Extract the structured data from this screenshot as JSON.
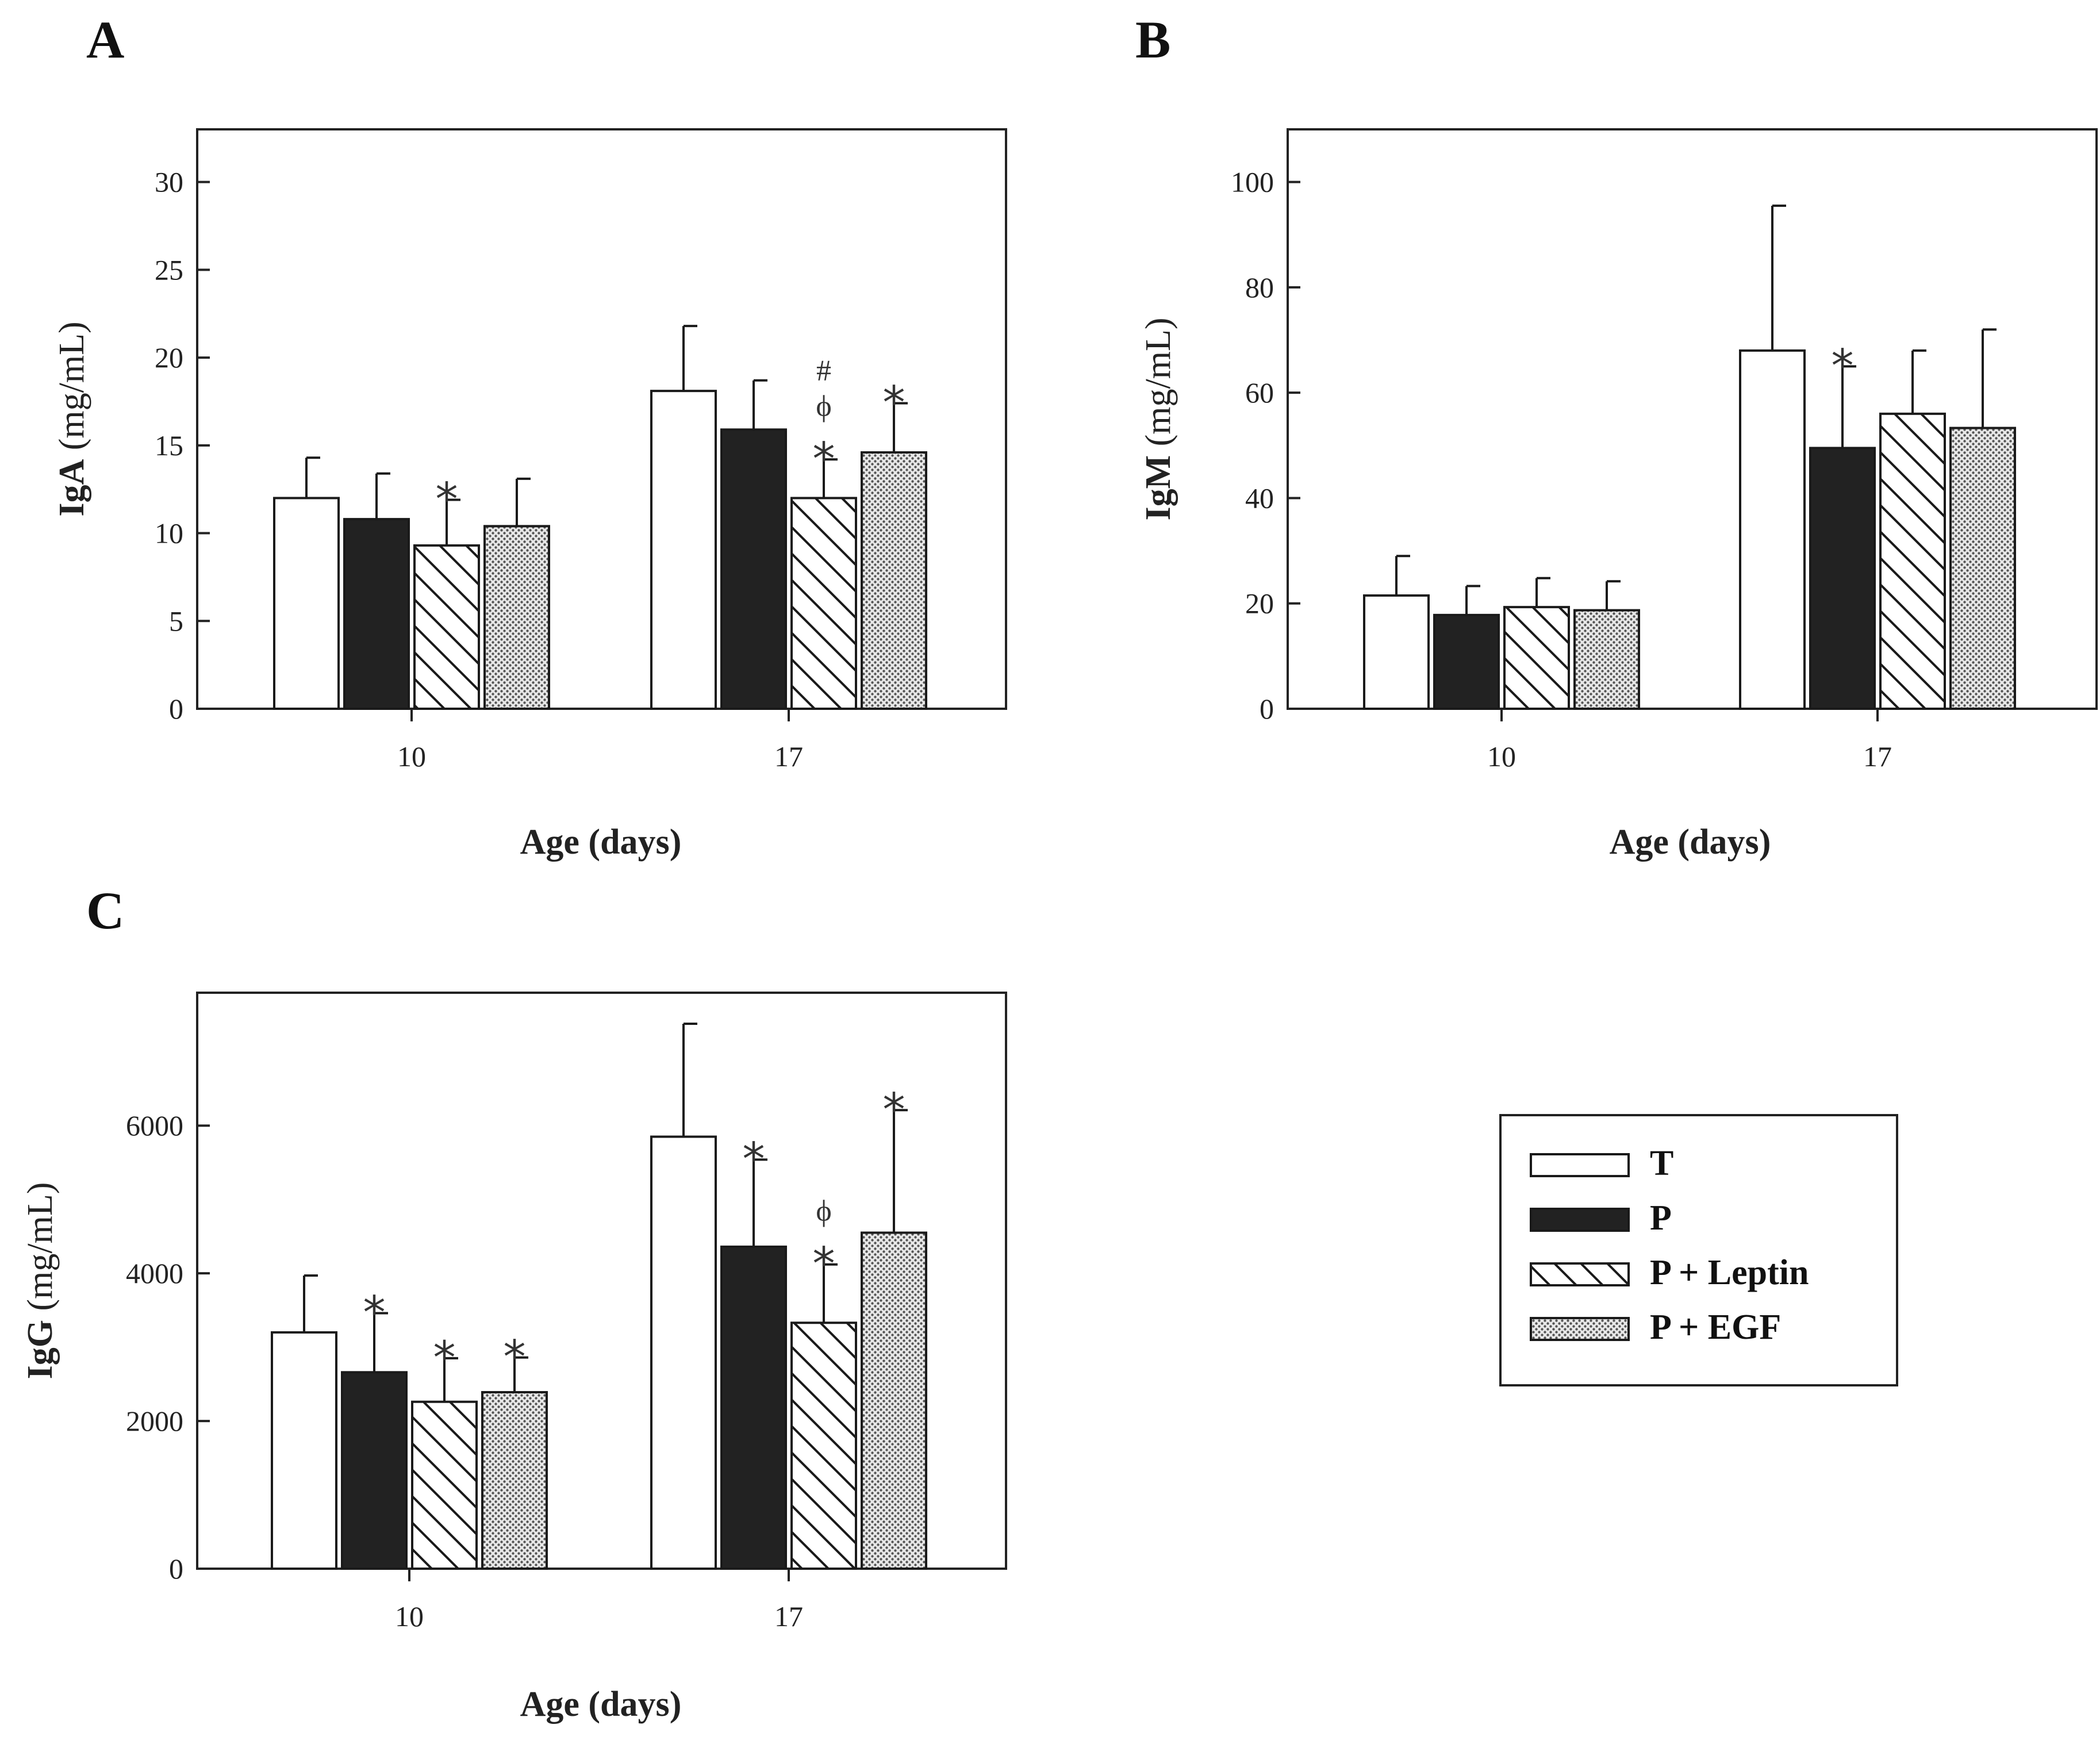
{
  "legend": {
    "entries": [
      {
        "name": "T",
        "fill": "white"
      },
      {
        "name": "P",
        "fill": "black"
      },
      {
        "name": "P + Leptin",
        "fill": "hatch"
      },
      {
        "name": "P + EGF",
        "fill": "dots"
      }
    ]
  },
  "chart_data": [
    {
      "panel": "A",
      "type": "bar",
      "title": "",
      "xlabel": "Age (days)",
      "ylabel_bold": "IgA",
      "ylabel_unit": " (mg/mL)",
      "categories": [
        "10",
        "17"
      ],
      "ylim": [
        0,
        33
      ],
      "yticks": [
        0,
        5,
        10,
        15,
        20,
        25,
        30
      ],
      "series": [
        {
          "name": "T",
          "values": [
            12.0,
            18.1
          ],
          "errors": [
            2.3,
            3.7
          ]
        },
        {
          "name": "P",
          "values": [
            10.8,
            15.9
          ],
          "errors": [
            2.6,
            2.8
          ]
        },
        {
          "name": "P + Leptin",
          "values": [
            9.3,
            12.0
          ],
          "errors": [
            2.6,
            2.2
          ]
        },
        {
          "name": "P + EGF",
          "values": [
            10.4,
            14.6
          ],
          "errors": [
            2.7,
            2.8
          ]
        }
      ],
      "annotations": [
        {
          "category": "10",
          "series": "P + Leptin",
          "marks": [
            "*"
          ]
        },
        {
          "category": "17",
          "series": "P + Leptin",
          "marks": [
            "*",
            "ϕ",
            "#"
          ]
        },
        {
          "category": "17",
          "series": "P + EGF",
          "marks": [
            "*"
          ]
        }
      ]
    },
    {
      "panel": "B",
      "type": "bar",
      "title": "",
      "xlabel": "Age (days)",
      "ylabel_bold": "IgM",
      "ylabel_unit": " (mg/mL)",
      "categories": [
        "10",
        "17"
      ],
      "ylim": [
        0,
        110
      ],
      "yticks": [
        0,
        20,
        40,
        60,
        80,
        100
      ],
      "series": [
        {
          "name": "T",
          "values": [
            21.5,
            68.0
          ],
          "errors": [
            7.5,
            27.5
          ]
        },
        {
          "name": "P",
          "values": [
            17.8,
            49.5
          ],
          "errors": [
            5.5,
            15.5
          ]
        },
        {
          "name": "P + Leptin",
          "values": [
            19.3,
            56.0
          ],
          "errors": [
            5.5,
            12.0
          ]
        },
        {
          "name": "P + EGF",
          "values": [
            18.7,
            53.3
          ],
          "errors": [
            5.5,
            18.7
          ]
        }
      ],
      "annotations": [
        {
          "category": "17",
          "series": "P",
          "marks": [
            "*"
          ]
        }
      ]
    },
    {
      "panel": "C",
      "type": "bar",
      "title": "",
      "xlabel": "Age (days)",
      "ylabel_bold": "IgG",
      "ylabel_unit": " (mg/mL)",
      "categories": [
        "10",
        "17"
      ],
      "ylim": [
        0,
        7800
      ],
      "yticks": [
        0,
        2000,
        4000,
        6000
      ],
      "series": [
        {
          "name": "T",
          "values": [
            3200,
            5850
          ],
          "errors": [
            770,
            1530
          ]
        },
        {
          "name": "P",
          "values": [
            2660,
            4360
          ],
          "errors": [
            800,
            1180
          ]
        },
        {
          "name": "P + Leptin",
          "values": [
            2260,
            3330
          ],
          "errors": [
            590,
            790
          ]
        },
        {
          "name": "P + EGF",
          "values": [
            2390,
            4550
          ],
          "errors": [
            470,
            1660
          ]
        }
      ],
      "annotations": [
        {
          "category": "10",
          "series": "P",
          "marks": [
            "*"
          ]
        },
        {
          "category": "10",
          "series": "P + Leptin",
          "marks": [
            "*"
          ]
        },
        {
          "category": "10",
          "series": "P + EGF",
          "marks": [
            "*"
          ]
        },
        {
          "category": "17",
          "series": "P",
          "marks": [
            "*"
          ]
        },
        {
          "category": "17",
          "series": "P + Leptin",
          "marks": [
            "*",
            "ϕ"
          ]
        },
        {
          "category": "17",
          "series": "P + EGF",
          "marks": [
            "*"
          ]
        }
      ]
    }
  ]
}
